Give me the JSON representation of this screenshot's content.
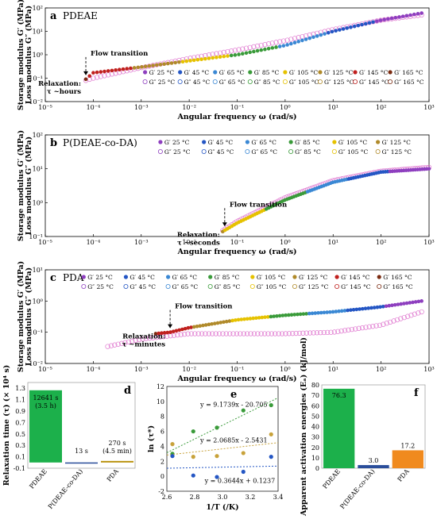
{
  "colors": {
    "t25": "#8e3fbf",
    "t45": "#2456c4",
    "t65": "#3a88d4",
    "t85": "#3a9b3a",
    "t105": "#e6c200",
    "t125": "#b08a2a",
    "t145": "#c0201e",
    "t165": "#7b2c12",
    "loss": "#e07ad0",
    "barGreen": "#1cb04b",
    "barBlue": "#2a4d9a",
    "barOrange": "#f08a1e",
    "barGold": "#b8900a"
  },
  "chart_data": [
    {
      "id": "a",
      "type": "scatter",
      "label": "a",
      "title": "PDEAE",
      "xlabel": "Angular frequency ω  (rad/s)",
      "ylabel": [
        "Storage modulus G′ (MPa)",
        "Loss modulus G″ (MPa)"
      ],
      "xscale": "log",
      "yscale": "log",
      "xlim": [
        1e-05,
        1000.0
      ],
      "ylim": [
        0.01,
        100
      ],
      "xticks": [
        "10⁻⁵",
        "10⁻⁴",
        "10⁻³",
        "10⁻²",
        "10⁻¹",
        "10⁰",
        "10¹",
        "10²",
        "10³"
      ],
      "yticks": [
        "10⁻²",
        "10⁻¹",
        "10⁰",
        "10¹",
        "10²"
      ],
      "legend_storage": [
        "G′ 25 °C",
        "G′ 45 °C",
        "G′ 65 °C",
        "G′ 85 °C",
        "G′ 105 °C",
        "G′ 125 °C",
        "G′ 145 °C",
        "G′ 165 °C"
      ],
      "legend_loss": [
        "G″ 25 °C",
        "G″ 45 °C",
        "G″ 65 °C",
        "G″ 85 °C",
        "G″ 105 °C",
        "G″ 125 °C",
        "G″ 145 °C",
        "G″ 165 °C"
      ],
      "annotations": [
        "Flow transition",
        "Relaxation:",
        "τ ~hours"
      ],
      "flow_transition_x": 7e-05,
      "storage_curve": [
        [
          7e-05,
          0.09
        ],
        [
          0.0001,
          0.17
        ],
        [
          0.001,
          0.3
        ],
        [
          0.01,
          0.55
        ],
        [
          0.1,
          1.0
        ],
        [
          1,
          2.5
        ],
        [
          10,
          10
        ],
        [
          100,
          30
        ],
        [
          700,
          60
        ]
      ],
      "loss_curve": [
        [
          7e-05,
          0.08
        ],
        [
          0.0001,
          0.1
        ],
        [
          0.001,
          0.28
        ],
        [
          0.01,
          0.7
        ],
        [
          0.1,
          1.6
        ],
        [
          1,
          4
        ],
        [
          10,
          12
        ],
        [
          100,
          30
        ],
        [
          700,
          50
        ]
      ]
    },
    {
      "id": "b",
      "type": "scatter",
      "label": "b",
      "title": "P(DEAE-co-DA)",
      "xlabel": "Angular frequency ω  (rad/s)",
      "ylabel": [
        "Storage modulus G′ (MPa)",
        "Loss modulus G″ (MPa)"
      ],
      "xscale": "log",
      "yscale": "log",
      "xlim": [
        1e-05,
        1000.0
      ],
      "ylim": [
        0.1,
        100
      ],
      "xticks": [
        "10⁻⁵",
        "10⁻⁴",
        "10⁻³",
        "10⁻²",
        "10⁻¹",
        "10⁰",
        "10¹",
        "10²",
        "10³"
      ],
      "yticks": [
        "10⁻¹",
        "10⁰",
        "10¹",
        "10²"
      ],
      "legend_storage": [
        "G′ 25 °C",
        "G′ 45 °C",
        "G′ 65 °C",
        "G′ 85 °C",
        "G′ 105 °C",
        "G′ 125 °C"
      ],
      "legend_loss": [
        "G″ 25 °C",
        "G″ 45 °C",
        "G″ 65 °C",
        "G″ 85 °C",
        "G″ 105 °C",
        "G″ 125 °C"
      ],
      "annotations": [
        "Flow transition",
        "Relaxation:",
        "τ ~seconds"
      ],
      "flow_transition_x": 0.055,
      "storage_curve": [
        [
          0.05,
          0.14
        ],
        [
          0.1,
          0.25
        ],
        [
          1,
          1.2
        ],
        [
          10,
          4
        ],
        [
          100,
          8
        ],
        [
          1000,
          10
        ]
      ],
      "loss_curve": [
        [
          0.05,
          0.15
        ],
        [
          0.1,
          0.28
        ],
        [
          1,
          1.4
        ],
        [
          10,
          4.5
        ],
        [
          100,
          8.5
        ],
        [
          1000,
          11
        ]
      ]
    },
    {
      "id": "c",
      "type": "scatter",
      "label": "c",
      "title": "PDA",
      "xlabel": "Angular frequency ω  (rad/s)",
      "ylabel": [
        "Storage modulus G′ (MPa)",
        "Loss modulus G″ (MPa)"
      ],
      "xscale": "log",
      "yscale": "log",
      "xlim": [
        1e-05,
        1000.0
      ],
      "ylim": [
        0.01,
        10
      ],
      "xticks": [
        "10⁻⁵",
        "10⁻⁴",
        "10⁻³",
        "10⁻²",
        "10⁻¹",
        "10⁰",
        "10¹",
        "10²",
        "10³"
      ],
      "yticks": [
        "10⁻²",
        "10⁻¹",
        "10⁰",
        "10¹"
      ],
      "legend_storage": [
        "G′ 25 °C",
        "G′ 45 °C",
        "G′ 65 °C",
        "G′ 85 °C",
        "G′ 105 °C",
        "G′ 125 °C",
        "G′ 145 °C",
        "G′ 165 °C"
      ],
      "legend_loss": [
        "G″ 25 °C",
        "G″ 45 °C",
        "G″ 65 °C",
        "G″ 85 °C",
        "G″ 105 °C",
        "G″ 125 °C",
        "G″ 145 °C",
        "G″ 165 °C"
      ],
      "annotations": [
        "Flow transition",
        "Relaxation:",
        "τ ~minutes"
      ],
      "flow_transition_x": 0.004,
      "storage_curve": [
        [
          0.002,
          0.09
        ],
        [
          0.004,
          0.1
        ],
        [
          0.01,
          0.14
        ],
        [
          0.1,
          0.25
        ],
        [
          1,
          0.35
        ],
        [
          10,
          0.45
        ],
        [
          100,
          0.65
        ],
        [
          700,
          1.0
        ]
      ],
      "loss_curve": [
        [
          0.0002,
          0.035
        ],
        [
          0.001,
          0.06
        ],
        [
          0.01,
          0.09
        ],
        [
          0.1,
          0.09
        ],
        [
          1,
          0.09
        ],
        [
          10,
          0.1
        ],
        [
          100,
          0.17
        ],
        [
          700,
          0.45
        ]
      ]
    },
    {
      "id": "d",
      "type": "bar",
      "label": "d",
      "ylabel": "Relaxation time (τ) (× 10⁴ s)",
      "ylim": [
        -0.1,
        1.4
      ],
      "yticks": [
        "-0.1",
        "0.1",
        "0.3",
        "0.5",
        "0.7",
        "0.9",
        "1.1",
        "1.3"
      ],
      "categories": [
        "PDEAE",
        "P(DEAE-co-DA)",
        "PDA"
      ],
      "values": [
        1.2641,
        0.0013,
        0.027
      ],
      "bar_labels": [
        [
          "12641 s",
          "(3.5 h)"
        ],
        [
          "13 s"
        ],
        [
          "270 s",
          "(4.5 min)"
        ]
      ]
    },
    {
      "id": "e",
      "type": "scatter",
      "label": "e",
      "xlabel": "1/T (/K)",
      "ylabel": "ln (τ*)",
      "xlim": [
        2.6,
        3.4
      ],
      "ylim": [
        -2,
        12
      ],
      "xticks": [
        "2.6",
        "2.8",
        "3.0",
        "3.2",
        "3.4"
      ],
      "yticks": [
        "-2",
        "0",
        "2",
        "4",
        "6",
        "8",
        "10",
        "12"
      ],
      "series": [
        {
          "equation": "y = 9.1739x - 20.705",
          "slope": 9.1739,
          "intercept": -20.705,
          "color": "green",
          "x": [
            2.64,
            2.79,
            2.96,
            3.15,
            3.35
          ],
          "y": [
            3.0,
            6.0,
            6.5,
            8.8,
            9.5
          ]
        },
        {
          "equation": "y = 2.0685x - 2.5431",
          "slope": 2.0685,
          "intercept": -2.5431,
          "color": "gold",
          "x": [
            2.64,
            2.79,
            2.96,
            3.15,
            3.35
          ],
          "y": [
            4.3,
            2.6,
            2.7,
            3.1,
            5.6
          ]
        },
        {
          "equation": "y = 0.3644x + 0.1237",
          "slope": 0.3644,
          "intercept": 0.1237,
          "color": "blue",
          "x": [
            2.64,
            2.79,
            2.96,
            3.15,
            3.35
          ],
          "y": [
            2.7,
            0.1,
            -0.1,
            0.6,
            2.6
          ]
        }
      ]
    },
    {
      "id": "f",
      "type": "bar",
      "label": "f",
      "ylabel": "Apparent activation energies (Eₐ) (kJ/mol)",
      "ylim": [
        0,
        80
      ],
      "yticks": [
        "0",
        "10",
        "20",
        "30",
        "40",
        "50",
        "60",
        "70",
        "80"
      ],
      "categories": [
        "PDEAE",
        "P(DEAE-co-DA)",
        "PDA"
      ],
      "values": [
        76.3,
        3.0,
        17.2
      ],
      "bar_labels": [
        "76.3",
        "3.0",
        "17.2"
      ]
    }
  ]
}
